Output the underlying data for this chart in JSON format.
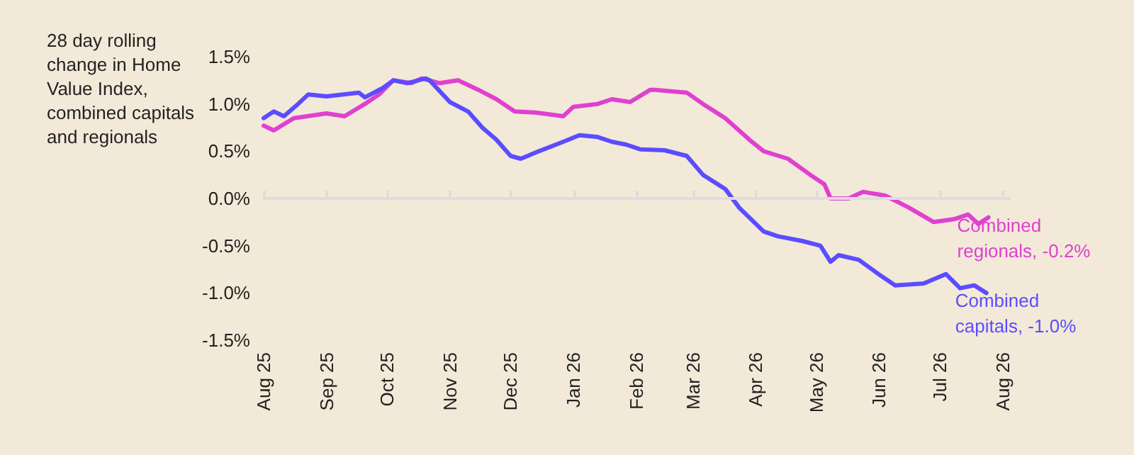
{
  "chart_data": {
    "type": "line",
    "ylabel": "28 day rolling change in Home Value Index, combined capitals and regionals",
    "xlim": [
      "2025-08-01",
      "2026-08-05"
    ],
    "xticks": [
      {
        "value": "2025-08-01",
        "label": "Aug 25"
      },
      {
        "value": "2025-09-01",
        "label": "Sep 25"
      },
      {
        "value": "2025-10-01",
        "label": "Oct 25"
      },
      {
        "value": "2025-11-01",
        "label": "Nov 25"
      },
      {
        "value": "2025-12-01",
        "label": "Dec 25"
      },
      {
        "value": "2026-01-01",
        "label": "Jan 26"
      },
      {
        "value": "2026-02-01",
        "label": "Feb 26"
      },
      {
        "value": "2026-03-01",
        "label": "Mar 26"
      },
      {
        "value": "2026-04-01",
        "label": "Apr 26"
      },
      {
        "value": "2026-05-01",
        "label": "May 26"
      },
      {
        "value": "2026-06-01",
        "label": "Jun 26"
      },
      {
        "value": "2026-07-01",
        "label": "Jul 26"
      },
      {
        "value": "2026-08-01",
        "label": "Aug 26"
      }
    ],
    "ylim": [
      -1.5,
      1.5
    ],
    "yticks": [
      {
        "value": -1.5,
        "label": "-1.5%"
      },
      {
        "value": -1,
        "label": "-1.0%"
      },
      {
        "value": -0.5,
        "label": "-0.5%"
      },
      {
        "value": 0,
        "label": "0.0%"
      },
      {
        "value": 0.5,
        "label": "0.5%"
      },
      {
        "value": 1,
        "label": "1.0%"
      },
      {
        "value": 1.5,
        "label": "1.5%"
      }
    ],
    "grid": false,
    "ref_lines": [
      {
        "axis": "y",
        "value": 0,
        "color": "#dddddd",
        "line_style": "solid"
      }
    ],
    "legend": false,
    "line_style": "solid",
    "marker": "none",
    "series": [
      {
        "name": "Combined regionals, -0.2%",
        "color": "#e040d0",
        "x": [
          "2025-08-01",
          "2025-08-06",
          "2025-08-16",
          "2025-09-01",
          "2025-09-10",
          "2025-09-20",
          "2025-09-27",
          "2025-10-04",
          "2025-10-13",
          "2025-10-18",
          "2025-10-27",
          "2025-11-05",
          "2025-11-15",
          "2025-11-24",
          "2025-12-03",
          "2025-12-13",
          "2025-12-27",
          "2026-01-01",
          "2026-01-13",
          "2026-01-20",
          "2026-01-29",
          "2026-02-08",
          "2026-02-10",
          "2026-02-26",
          "2026-03-06",
          "2026-03-17",
          "2026-03-29",
          "2026-04-05",
          "2026-04-17",
          "2026-04-28",
          "2026-05-05",
          "2026-05-08",
          "2026-05-17",
          "2026-05-24",
          "2026-06-04",
          "2026-06-16",
          "2026-06-28",
          "2026-07-08",
          "2026-07-15",
          "2026-07-20",
          "2026-07-25"
        ],
        "values": [
          0.77,
          0.72,
          0.85,
          0.9,
          0.87,
          1.0,
          1.1,
          1.25,
          1.22,
          1.27,
          1.22,
          1.25,
          1.15,
          1.05,
          0.92,
          0.91,
          0.87,
          0.97,
          1.0,
          1.05,
          1.02,
          1.15,
          1.15,
          1.12,
          1.0,
          0.85,
          0.62,
          0.5,
          0.42,
          0.25,
          0.15,
          0.0,
          0.0,
          0.07,
          0.03,
          -0.1,
          -0.25,
          -0.22,
          -0.17,
          -0.27,
          -0.2
        ]
      },
      {
        "name": "Combined capitals, -1.0%",
        "color": "#5b4cff",
        "x": [
          "2025-08-01",
          "2025-08-06",
          "2025-08-11",
          "2025-08-18",
          "2025-08-23",
          "2025-09-01",
          "2025-09-17",
          "2025-09-20",
          "2025-09-29",
          "2025-10-04",
          "2025-10-11",
          "2025-10-20",
          "2025-10-22",
          "2025-11-01",
          "2025-11-10",
          "2025-11-17",
          "2025-11-24",
          "2025-12-01",
          "2025-12-06",
          "2025-12-15",
          "2025-12-27",
          "2026-01-04",
          "2026-01-13",
          "2026-01-20",
          "2026-01-27",
          "2026-02-03",
          "2026-02-15",
          "2026-02-26",
          "2026-03-06",
          "2026-03-17",
          "2026-03-24",
          "2026-04-05",
          "2026-04-12",
          "2026-04-24",
          "2026-05-03",
          "2026-05-08",
          "2026-05-12",
          "2026-05-22",
          "2026-06-02",
          "2026-06-09",
          "2026-06-23",
          "2026-07-04",
          "2026-07-11",
          "2026-07-18",
          "2026-07-24"
        ],
        "values": [
          0.85,
          0.92,
          0.87,
          1.0,
          1.1,
          1.08,
          1.12,
          1.07,
          1.17,
          1.25,
          1.22,
          1.27,
          1.25,
          1.02,
          0.92,
          0.75,
          0.62,
          0.45,
          0.42,
          0.5,
          0.6,
          0.67,
          0.65,
          0.6,
          0.57,
          0.52,
          0.51,
          0.45,
          0.25,
          0.1,
          -0.1,
          -0.35,
          -0.4,
          -0.45,
          -0.5,
          -0.67,
          -0.6,
          -0.65,
          -0.82,
          -0.92,
          -0.9,
          -0.8,
          -0.95,
          -0.92,
          -1.0
        ]
      }
    ]
  }
}
